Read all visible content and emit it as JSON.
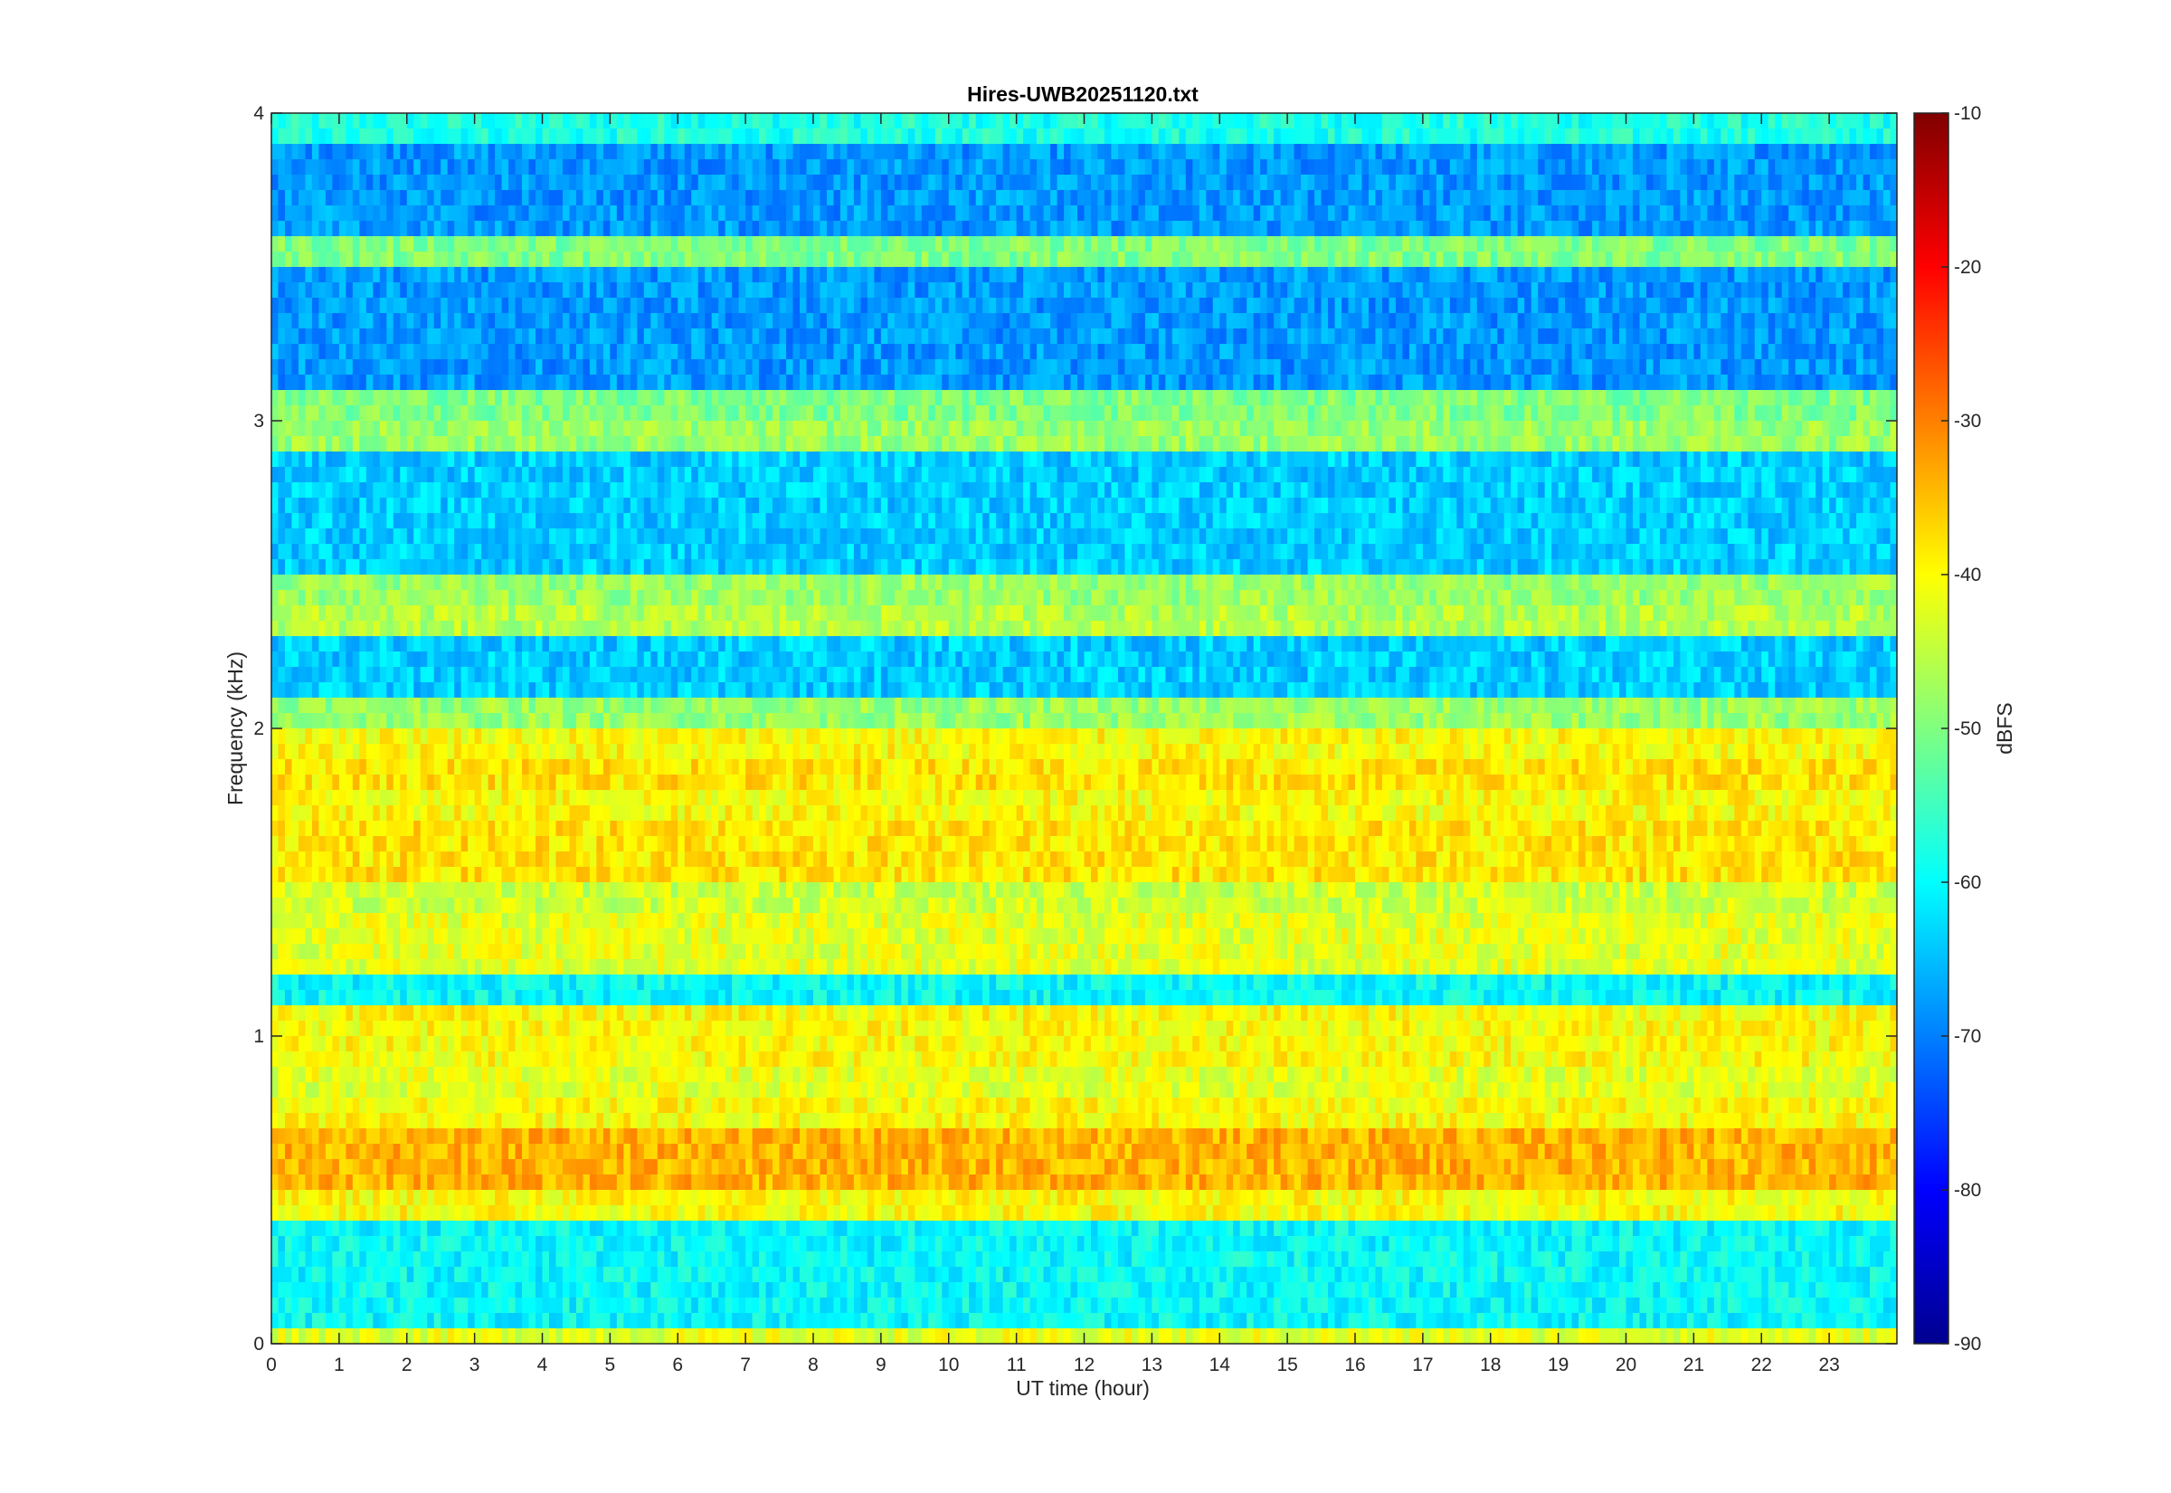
{
  "chart_data": {
    "type": "heatmap",
    "title": "Hires-UWB20251120.txt",
    "xlabel": "UT time (hour)",
    "ylabel": "Frequency (kHz)",
    "xlim": [
      0,
      24
    ],
    "ylim": [
      0,
      4
    ],
    "x_ticks": [
      "0",
      "1",
      "2",
      "3",
      "4",
      "5",
      "6",
      "7",
      "8",
      "9",
      "10",
      "11",
      "12",
      "13",
      "14",
      "15",
      "16",
      "17",
      "18",
      "19",
      "20",
      "21",
      "22",
      "23"
    ],
    "y_ticks": [
      "0",
      "1",
      "2",
      "3",
      "4"
    ],
    "colorbar": {
      "label": "dBFS",
      "range": [
        -90,
        -10
      ],
      "ticks": [
        "-90",
        "-80",
        "-70",
        "-60",
        "-50",
        "-40",
        "-30",
        "-20",
        "-10"
      ],
      "colormap": "jet"
    },
    "bands": [
      {
        "freq_khz": 0.04,
        "level_dbfs": -42
      },
      {
        "freq_khz": 0.45,
        "level_dbfs": -40
      },
      {
        "freq_khz": 0.55,
        "level_dbfs": -34
      },
      {
        "freq_khz": 0.65,
        "level_dbfs": -34
      },
      {
        "freq_khz": 0.75,
        "level_dbfs": -40
      },
      {
        "freq_khz": 0.85,
        "level_dbfs": -42
      },
      {
        "freq_khz": 0.95,
        "level_dbfs": -40
      },
      {
        "freq_khz": 1.05,
        "level_dbfs": -40
      },
      {
        "freq_khz": 1.25,
        "level_dbfs": -42
      },
      {
        "freq_khz": 1.35,
        "level_dbfs": -42
      },
      {
        "freq_khz": 1.45,
        "level_dbfs": -44
      },
      {
        "freq_khz": 1.55,
        "level_dbfs": -38
      },
      {
        "freq_khz": 1.65,
        "level_dbfs": -38
      },
      {
        "freq_khz": 1.75,
        "level_dbfs": -40
      },
      {
        "freq_khz": 1.85,
        "level_dbfs": -38
      },
      {
        "freq_khz": 1.95,
        "level_dbfs": -40
      },
      {
        "freq_khz": 2.05,
        "level_dbfs": -48
      },
      {
        "freq_khz": 2.35,
        "level_dbfs": -46
      },
      {
        "freq_khz": 2.45,
        "level_dbfs": -48
      },
      {
        "freq_khz": 2.95,
        "level_dbfs": -48
      },
      {
        "freq_khz": 3.05,
        "level_dbfs": -50
      },
      {
        "freq_khz": 3.55,
        "level_dbfs": -50
      },
      {
        "freq_khz": 3.95,
        "level_dbfs": -58
      }
    ],
    "grid": false,
    "legend": "colorbar-right"
  }
}
